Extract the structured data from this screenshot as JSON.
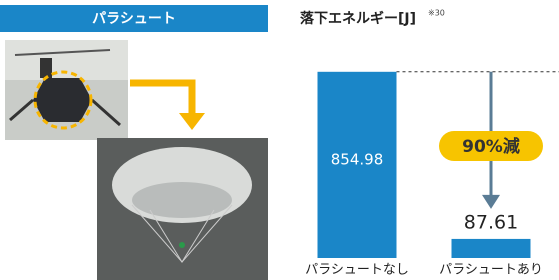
{
  "panel": {
    "title": "パラシュート"
  },
  "chart_data": {
    "type": "bar",
    "title": "落下エネルギー[J]",
    "note": "※30",
    "categories": [
      "パラシュートなし",
      "パラシュートあり"
    ],
    "values": [
      854.98,
      87.61
    ],
    "color": "#1a86c8",
    "annotation": "90%減",
    "ylim": [
      0,
      900
    ]
  }
}
